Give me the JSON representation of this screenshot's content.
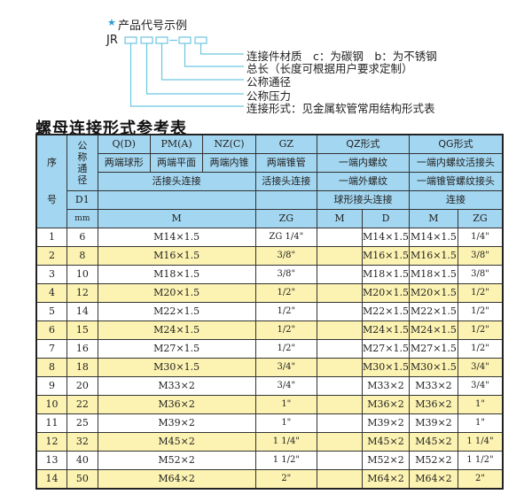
{
  "diagram": {
    "example_title": "产品代号示例",
    "prefix": "JR",
    "dash": "-",
    "labels": [
      "连接件材质　c：为碳钢　b：为不锈钢",
      "总长（长度可根据用户要求定制）",
      "公称通径",
      "公称压力",
      "连接形式：见金属软管常用结构形式表"
    ],
    "line_color": "#6cc6e0",
    "star_color": "#2a9fd6"
  },
  "table_title": "螺母连接形式参考表",
  "header": {
    "seq": "序号",
    "dn": "公称通径",
    "d1": "D1",
    "mm": "mm",
    "qd": "Q(D)",
    "pm": "PM(A)",
    "nz": "NZ(C)",
    "gz": "GZ",
    "qz": "QZ形式",
    "qg": "QG形式",
    "qd_desc": "两端球形",
    "pm_desc": "两端平面",
    "nz_desc": "两端内锥",
    "gz_desc": "两端锥管",
    "qz_desc": "一端内螺纹",
    "qg_desc": "一端内螺纹活接头",
    "union": "活接头连接",
    "gz_union": "活接头连接",
    "qz_desc2": "一端外螺纹",
    "qg_desc2": "一端锥管螺纹接头",
    "qz_desc3": "球形接头连接",
    "qg_desc3": "连接",
    "m": "M",
    "zg": "ZG",
    "qz_m": "M",
    "qz_d": "D",
    "qg_m": "M",
    "qg_zg": "ZG"
  },
  "colors": {
    "header_bg": "#a3d6f0",
    "alt_row_bg": "#fcf3b2"
  },
  "rows": [
    {
      "no": "1",
      "dn": "6",
      "m": "M14×1.5",
      "zg": "ZG 1/4\"",
      "qz_m": "",
      "qz_d": "M14×1.5",
      "qg_m": "M14×1.5",
      "qg_zg": "1/4\""
    },
    {
      "no": "2",
      "dn": "8",
      "m": "M16×1.5",
      "zg": "3/8\"",
      "qz_m": "",
      "qz_d": "M16×1.5",
      "qg_m": "M16×1.5",
      "qg_zg": "3/8\""
    },
    {
      "no": "3",
      "dn": "10",
      "m": "M18×1.5",
      "zg": "3/8\"",
      "qz_m": "",
      "qz_d": "M18×1.5",
      "qg_m": "M18×1.5",
      "qg_zg": "3/8\""
    },
    {
      "no": "4",
      "dn": "12",
      "m": "M20×1.5",
      "zg": "1/2\"",
      "qz_m": "",
      "qz_d": "M20×1.5",
      "qg_m": "M20×1.5",
      "qg_zg": "1/2\""
    },
    {
      "no": "5",
      "dn": "14",
      "m": "M22×1.5",
      "zg": "1/2\"",
      "qz_m": "",
      "qz_d": "M22×1.5",
      "qg_m": "M22×1.5",
      "qg_zg": "1/2\""
    },
    {
      "no": "6",
      "dn": "15",
      "m": "M24×1.5",
      "zg": "1/2\"",
      "qz_m": "",
      "qz_d": "M24×1.5",
      "qg_m": "M24×1.5",
      "qg_zg": "1/2\""
    },
    {
      "no": "7",
      "dn": "16",
      "m": "M27×1.5",
      "zg": "1/2\"",
      "qz_m": "",
      "qz_d": "M27×1.5",
      "qg_m": "M27×1.5",
      "qg_zg": "1/2\""
    },
    {
      "no": "8",
      "dn": "18",
      "m": "M30×1.5",
      "zg": "3/4\"",
      "qz_m": "",
      "qz_d": "M30×1.5",
      "qg_m": "M30×1.5",
      "qg_zg": "3/4\""
    },
    {
      "no": "9",
      "dn": "20",
      "m": "M33×2",
      "zg": "3/4\"",
      "qz_m": "",
      "qz_d": "M33×2",
      "qg_m": "M33×2",
      "qg_zg": "3/4\""
    },
    {
      "no": "10",
      "dn": "22",
      "m": "M36×2",
      "zg": "1\"",
      "qz_m": "",
      "qz_d": "M36×2",
      "qg_m": "M36×2",
      "qg_zg": "1\""
    },
    {
      "no": "11",
      "dn": "25",
      "m": "M39×2",
      "zg": "1\"",
      "qz_m": "",
      "qz_d": "M39×2",
      "qg_m": "M39×2",
      "qg_zg": "1\""
    },
    {
      "no": "12",
      "dn": "32",
      "m": "M45×2",
      "zg": "1 1/4\"",
      "qz_m": "",
      "qz_d": "M45×2",
      "qg_m": "M45×2",
      "qg_zg": "1 1/4\""
    },
    {
      "no": "13",
      "dn": "40",
      "m": "M52×2",
      "zg": "1 1/2\"",
      "qz_m": "",
      "qz_d": "M52×2",
      "qg_m": "M52×2",
      "qg_zg": "1 1/2\""
    },
    {
      "no": "14",
      "dn": "50",
      "m": "M64×2",
      "zg": "2\"",
      "qz_m": "",
      "qz_d": "M64×2",
      "qg_m": "M64×2",
      "qg_zg": "2\""
    }
  ]
}
